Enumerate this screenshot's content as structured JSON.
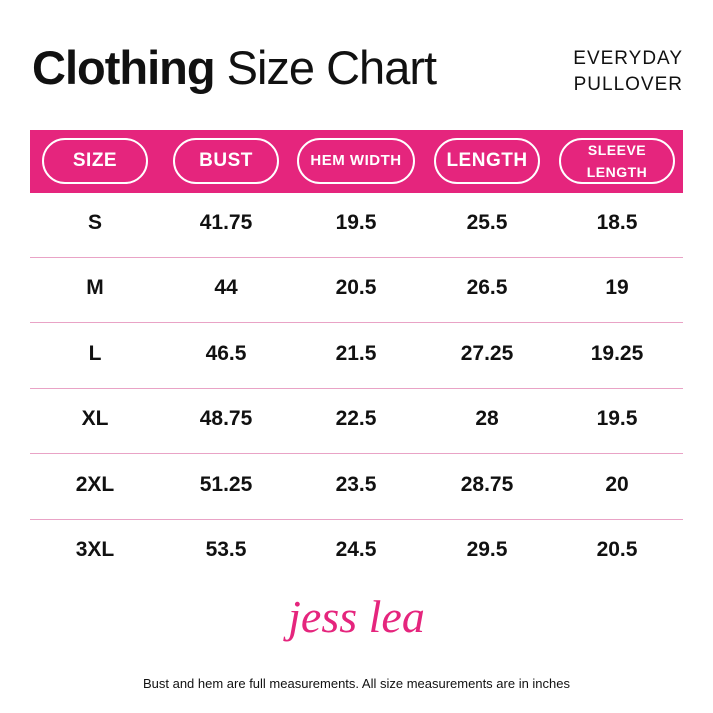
{
  "header": {
    "title_bold": "Clothing",
    "title_rest": "Size Chart",
    "product": [
      "EVERYDAY",
      "PULLOVER"
    ]
  },
  "table": {
    "columns": [
      "SIZE",
      "BUST",
      "HEM WIDTH",
      "LENGTH",
      "SLEEVE LENGTH"
    ],
    "rows": [
      [
        "S",
        41.75,
        19.5,
        25.5,
        18.5
      ],
      [
        "M",
        44,
        20.5,
        26.5,
        19
      ],
      [
        "L",
        46.5,
        21.5,
        27.25,
        19.25
      ],
      [
        "XL",
        48.75,
        22.5,
        28,
        19.5
      ],
      [
        "2XL",
        51.25,
        23.5,
        28.75,
        20
      ],
      [
        "3XL",
        53.5,
        24.5,
        29.5,
        20.5
      ]
    ]
  },
  "logo": "jess lea",
  "footnote": "Bust and hem are full measurements. All size measurements are in inches"
}
